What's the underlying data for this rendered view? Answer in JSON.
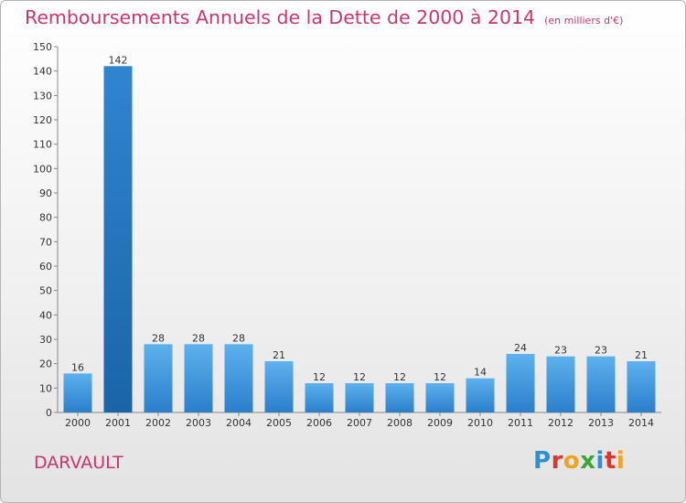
{
  "header": {
    "title": "Remboursements Annuels de la Dette de 2000 à 2014",
    "unit": "(en milliers d'€)"
  },
  "footer": {
    "commune": "DARVAULT",
    "brand": "Proxiti",
    "brand_colors": [
      "#2f8fd3",
      "#e0342b",
      "#f2a21b",
      "#3aa63a",
      "#2f8fd3",
      "#e0342b",
      "#f2a21b"
    ]
  },
  "chart_data": {
    "type": "bar",
    "title": "Remboursements Annuels de la Dette de 2000 à 2014",
    "categories": [
      "2000",
      "2001",
      "2002",
      "2003",
      "2004",
      "2005",
      "2006",
      "2007",
      "2008",
      "2009",
      "2010",
      "2011",
      "2012",
      "2013",
      "2014"
    ],
    "values": [
      16,
      142,
      28,
      28,
      28,
      21,
      12,
      12,
      12,
      12,
      14,
      24,
      23,
      23,
      21
    ],
    "data_labels": [
      "16",
      "142",
      "28",
      "28",
      "28",
      "21",
      "12",
      "12",
      "12",
      "12",
      "14",
      "24",
      "23",
      "23",
      "21"
    ],
    "ylim": [
      0,
      150
    ],
    "yticks": [
      "0",
      "10",
      "20",
      "30",
      "40",
      "50",
      "60",
      "70",
      "80",
      "90",
      "100",
      "110",
      "120",
      "130",
      "140",
      "150"
    ],
    "grid": false,
    "bar_color": "#3d8fdc",
    "highlight_bar_color": "#1f6fb5",
    "highlight_category": "2001"
  }
}
